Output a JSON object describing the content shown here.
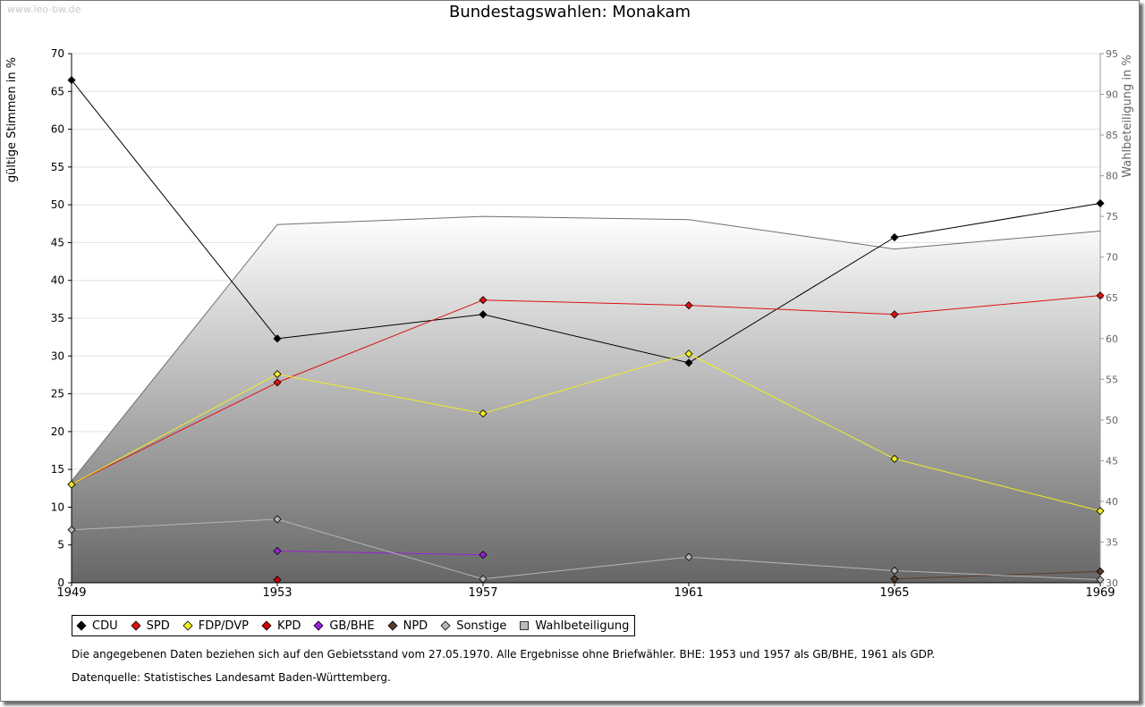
{
  "watermark": "www.leo-bw.de",
  "chart_data": {
    "type": "line",
    "title": "Bundestagswahlen: Monakam",
    "ylabel": "gültige Stimmen in %",
    "y2label": "Wahlbeteiligung in %",
    "x": [
      1949,
      1953,
      1957,
      1961,
      1965,
      1969
    ],
    "ylim": [
      0,
      70
    ],
    "y2lim": [
      30,
      95
    ],
    "yticks": [
      0,
      5,
      10,
      15,
      20,
      25,
      30,
      35,
      40,
      45,
      50,
      55,
      60,
      65,
      70
    ],
    "y2ticks": [
      30,
      35,
      40,
      45,
      50,
      55,
      60,
      65,
      70,
      75,
      80,
      85,
      90,
      95
    ],
    "grid": true,
    "legend_position": "bottom",
    "series": [
      {
        "name": "CDU",
        "color": "#000000",
        "values": [
          66.5,
          32.3,
          35.5,
          29.1,
          45.7,
          50.2
        ]
      },
      {
        "name": "SPD",
        "color": "#dd1111",
        "values": [
          13.0,
          26.5,
          37.4,
          36.7,
          35.5,
          38.0
        ]
      },
      {
        "name": "FDP/DVP",
        "color": "#f2ee1e",
        "values": [
          13.0,
          27.6,
          22.4,
          30.3,
          16.4,
          9.5
        ]
      },
      {
        "name": "KPD",
        "color": "#cc0000",
        "values": [
          null,
          0.4,
          null,
          null,
          null,
          null
        ]
      },
      {
        "name": "GB/BHE",
        "color": "#9a22d6",
        "values": [
          null,
          4.2,
          3.7,
          null,
          null,
          null
        ]
      },
      {
        "name": "NPD",
        "color": "#5a3a2a",
        "values": [
          null,
          null,
          null,
          null,
          0.5,
          1.5
        ]
      },
      {
        "name": "Sonstige",
        "color": "#b5b5b5",
        "values": [
          7.0,
          8.4,
          0.5,
          3.4,
          1.6,
          0.4
        ]
      }
    ],
    "turnout": {
      "name": "Wahlbeteiligung",
      "values": [
        42.5,
        74.0,
        75.0,
        74.6,
        71.0,
        73.2
      ]
    }
  },
  "notes": {
    "line1": "Die angegebenen Daten beziehen sich auf den Gebietsstand vom 27.05.1970. Alle Ergebnisse ohne Briefwähler. BHE: 1953 und 1957 als GB/BHE, 1961 als GDP.",
    "line2": "Datenquelle: Statistisches Landesamt Baden-Württemberg."
  }
}
